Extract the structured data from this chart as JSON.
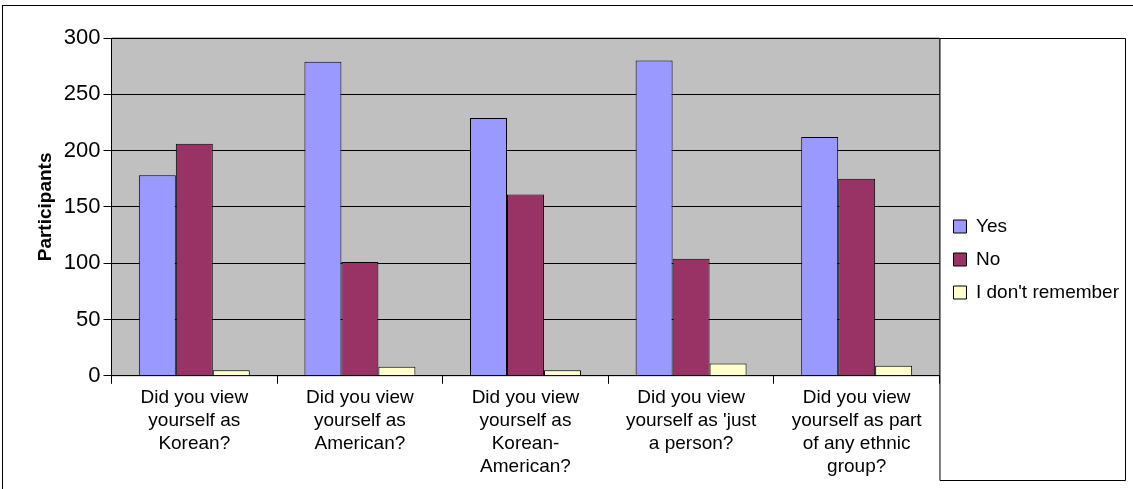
{
  "chart_data": {
    "type": "bar",
    "ylabel": "Participants",
    "categories": [
      "Did you view yourself as Korean?",
      "Did you view yourself as American?",
      "Did you view yourself as Korean-American?",
      "Did you view yourself as 'just a person?",
      "Did you view yourself as part of any ethnic group?"
    ],
    "series": [
      {
        "name": "Yes",
        "color": "#9999ff",
        "values": [
          178,
          279,
          229,
          280,
          212
        ]
      },
      {
        "name": "No",
        "color": "#993366",
        "values": [
          206,
          101,
          161,
          104,
          175
        ]
      },
      {
        "name": "I don't remember",
        "color": "#ffffcc",
        "values": [
          5,
          8,
          5,
          11,
          9
        ]
      }
    ],
    "ylim": [
      0,
      300
    ],
    "yticks": [
      0,
      50,
      100,
      150,
      200,
      250,
      300
    ],
    "grid": "y",
    "legend": "right"
  }
}
